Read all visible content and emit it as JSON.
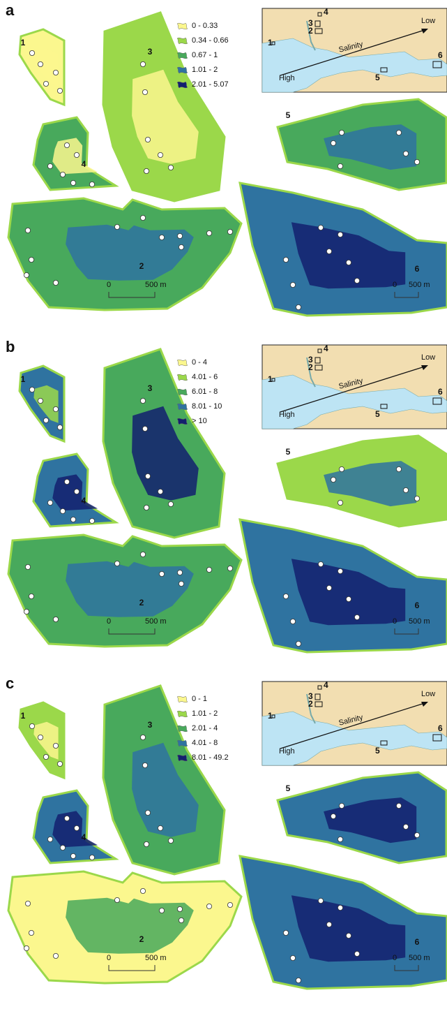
{
  "panels": [
    {
      "letter": "a",
      "legend": [
        {
          "label": "0 - 0.33",
          "color": "#fbf78e"
        },
        {
          "label": "0.34 - 0.66",
          "color": "#9bd84a"
        },
        {
          "label": "0.67 - 1",
          "color": "#48a95c"
        },
        {
          "label": "1.01 - 2",
          "color": "#2f73a0"
        },
        {
          "label": "2.01 - 5.07",
          "color": "#13206e"
        }
      ],
      "site_labels": [
        "1",
        "2",
        "3",
        "4",
        "5",
        "6"
      ],
      "scale_labels": [
        "0",
        "500 m"
      ],
      "inset": {
        "high": "High",
        "low": "Low",
        "salinity": "Salinity",
        "sites": [
          "1",
          "2",
          "3",
          "4",
          "5",
          "6"
        ]
      }
    },
    {
      "letter": "b",
      "legend": [
        {
          "label": "0 - 4",
          "color": "#fbf78e"
        },
        {
          "label": "4.01 - 6",
          "color": "#9bd84a"
        },
        {
          "label": "6.01 - 8",
          "color": "#48a95c"
        },
        {
          "label": "8.01 - 10",
          "color": "#2f73a0"
        },
        {
          "label": "> 10",
          "color": "#13206e"
        }
      ],
      "site_labels": [
        "1",
        "2",
        "3",
        "4",
        "5",
        "6"
      ],
      "scale_labels": [
        "0",
        "500 m"
      ],
      "inset": {
        "high": "High",
        "low": "Low",
        "salinity": "Salinity",
        "sites": [
          "1",
          "2",
          "3",
          "4",
          "5",
          "6"
        ]
      }
    },
    {
      "letter": "c",
      "legend": [
        {
          "label": "0 - 1",
          "color": "#fbf78e"
        },
        {
          "label": "1.01 - 2",
          "color": "#9bd84a"
        },
        {
          "label": "2.01 - 4",
          "color": "#48a95c"
        },
        {
          "label": "4.01 - 8",
          "color": "#2f73a0"
        },
        {
          "label": "8.01 - 49.2",
          "color": "#13206e"
        }
      ],
      "site_labels": [
        "1",
        "2",
        "3",
        "4",
        "5",
        "6"
      ],
      "scale_labels": [
        "0",
        "500 m"
      ],
      "inset": {
        "high": "High",
        "low": "Low",
        "salinity": "Salinity",
        "sites": [
          "1",
          "2",
          "3",
          "4",
          "5",
          "6"
        ]
      }
    }
  ]
}
